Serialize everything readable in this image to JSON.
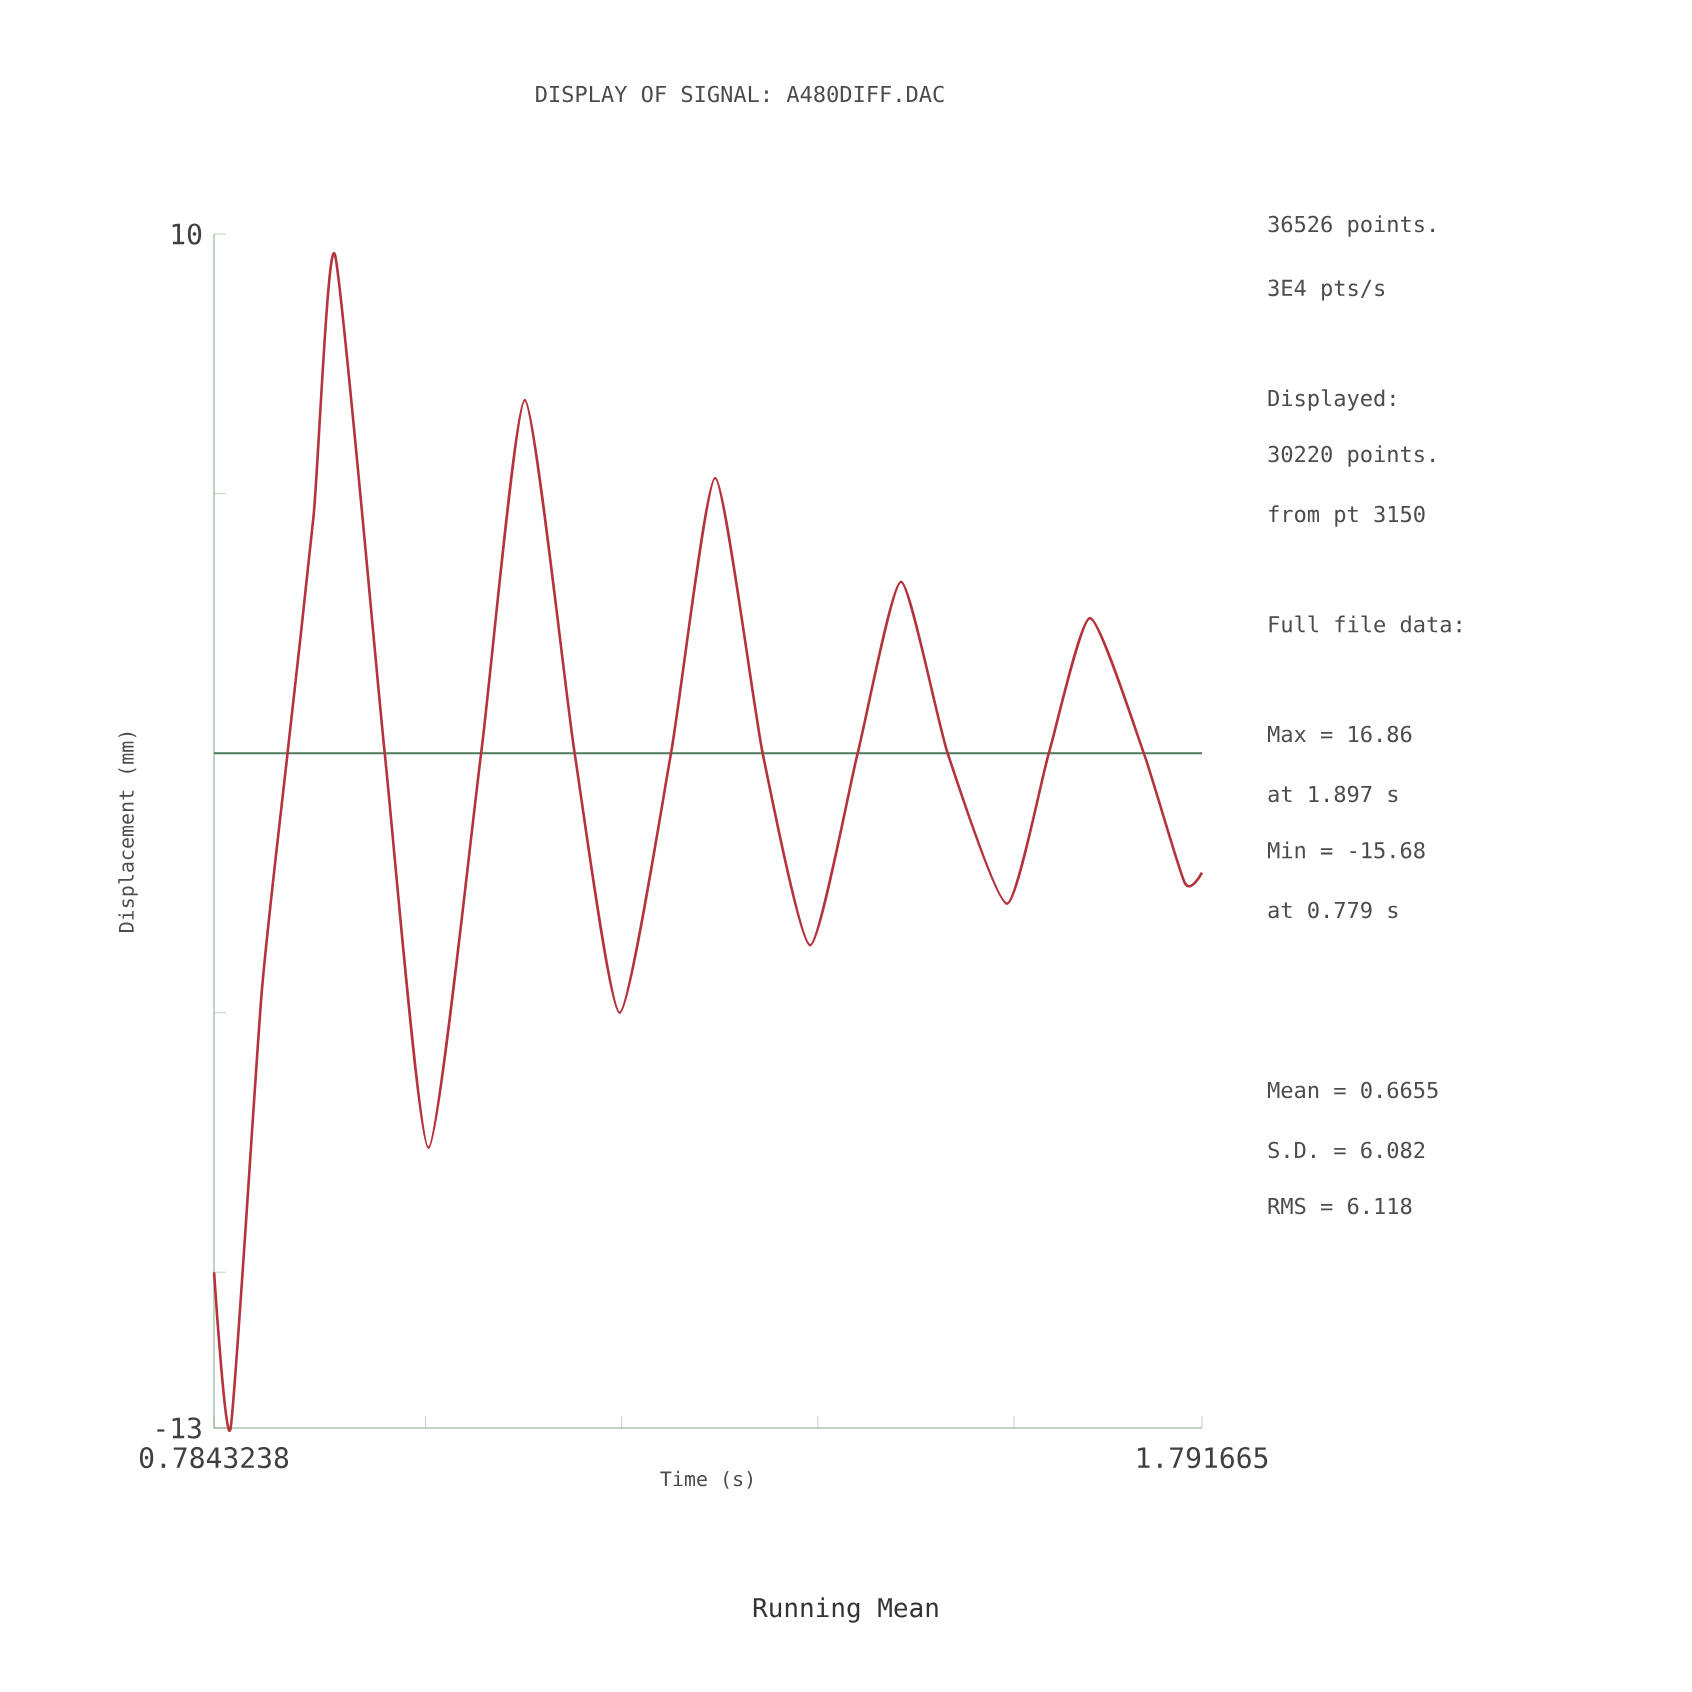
{
  "chart_data": {
    "type": "line",
    "title": "DISPLAY OF SIGNAL: A480DIFF.DAC",
    "xlabel": "Time (s)",
    "ylabel": "Displacement (mm)",
    "x": [
      0.7844,
      0.8013,
      0.833,
      0.8593,
      0.886,
      0.9077,
      0.9584,
      1.003,
      1.0567,
      1.1012,
      1.152,
      1.1979,
      1.2503,
      1.2953,
      1.3437,
      1.3922,
      1.4406,
      1.4848,
      1.5323,
      1.5928,
      1.6355,
      1.6775,
      1.7323,
      1.7741,
      1.7916
    ],
    "series": [
      {
        "color": "#b5333c",
        "values": [
          -10.0,
          -13.0,
          -4.6,
          0.0,
          4.6,
          9.6,
          0.0,
          -7.6,
          0.0,
          6.8,
          0.0,
          -5.0,
          0.0,
          5.3,
          0.0,
          -3.7,
          0.0,
          3.3,
          0.0,
          -2.9,
          0.0,
          2.6,
          0.0,
          -2.5,
          -2.3
        ]
      }
    ],
    "xlim": [
      0.7843238,
      1.791665
    ],
    "ylim": [
      -13,
      10
    ],
    "xticks": [
      0.7843238,
      {
        "value": 1.0,
        "label": null
      },
      {
        "value": 1.2,
        "label": null
      },
      {
        "value": 1.4,
        "label": null
      },
      {
        "value": 1.6,
        "label": null
      },
      1.791665
    ],
    "yticks": [
      -13,
      {
        "value": -10,
        "label": null
      },
      {
        "value": -5,
        "label": null
      },
      {
        "value": 0,
        "label": null
      },
      {
        "value": 5,
        "label": null
      },
      10
    ],
    "ref_lines": [
      {
        "axis": "y",
        "value": 0,
        "color": "#4d7a5c"
      }
    ],
    "marker": "none",
    "line_style": "solid",
    "annotations": [
      "36526 points.",
      "3E4 pts/s",
      "Displayed:",
      "30220 points.",
      "from pt 3150",
      "Full file data:",
      "Max = 16.86",
      "at 1.897 s",
      "Min = -15.68",
      "at 0.779 s",
      "Mean = 0.6655",
      "S.D. = 6.082",
      "RMS = 6.118",
      "Running Mean"
    ]
  }
}
